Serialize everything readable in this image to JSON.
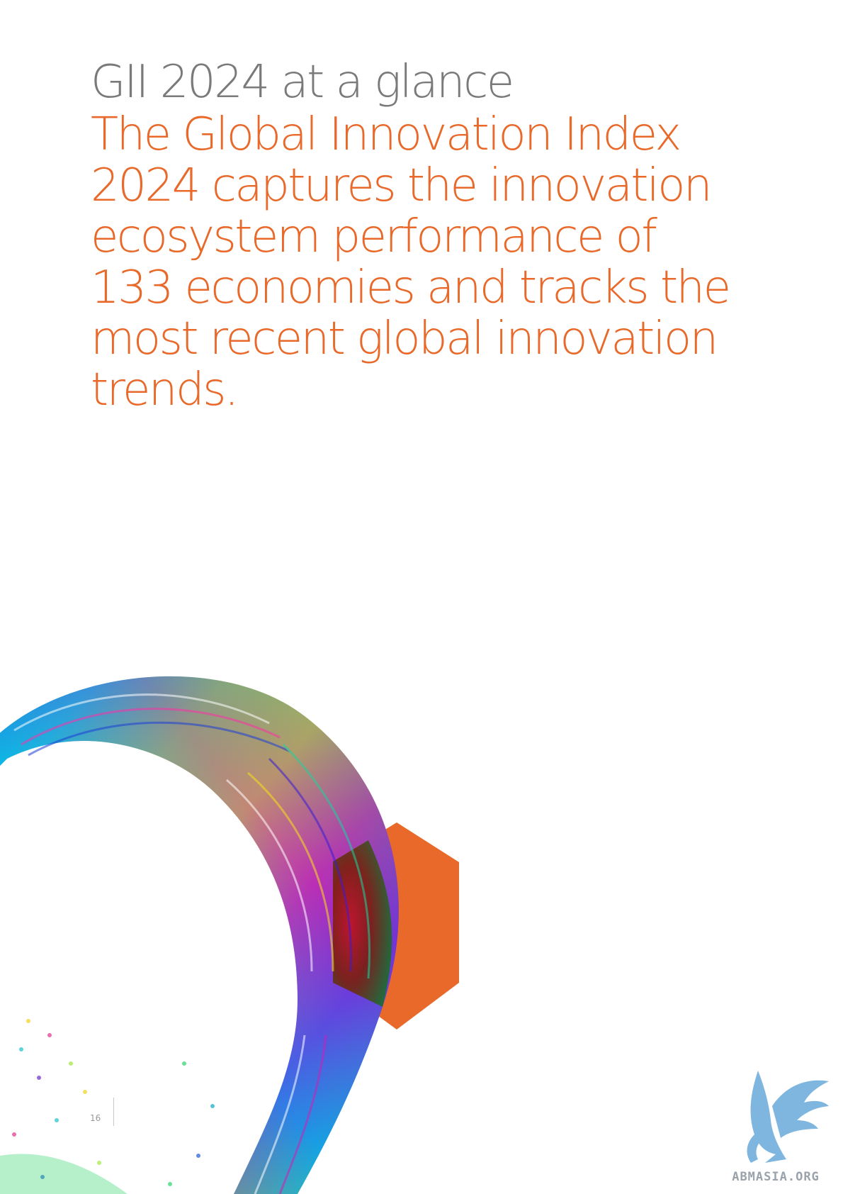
{
  "page": {
    "kicker": "GII 2024 at a glance",
    "headline_lines": [
      "The Global Innovation Index",
      "2024 captures the innovation",
      "ecosystem performance of",
      "133 economies and tracks the",
      "most recent global innovation",
      "trends."
    ],
    "page_number": "16"
  },
  "watermark": {
    "text": "ABMASIA.ORG"
  },
  "colors": {
    "accent": "#e8692a",
    "kicker": "#7a7a7a",
    "watermark": "#7fb6e0"
  },
  "icons": {
    "decorative_art": "abstract-data-swirl-icon",
    "hexagon": "orange-hexagon-icon",
    "watermark_logo": "winged-dragon-logo-icon"
  }
}
